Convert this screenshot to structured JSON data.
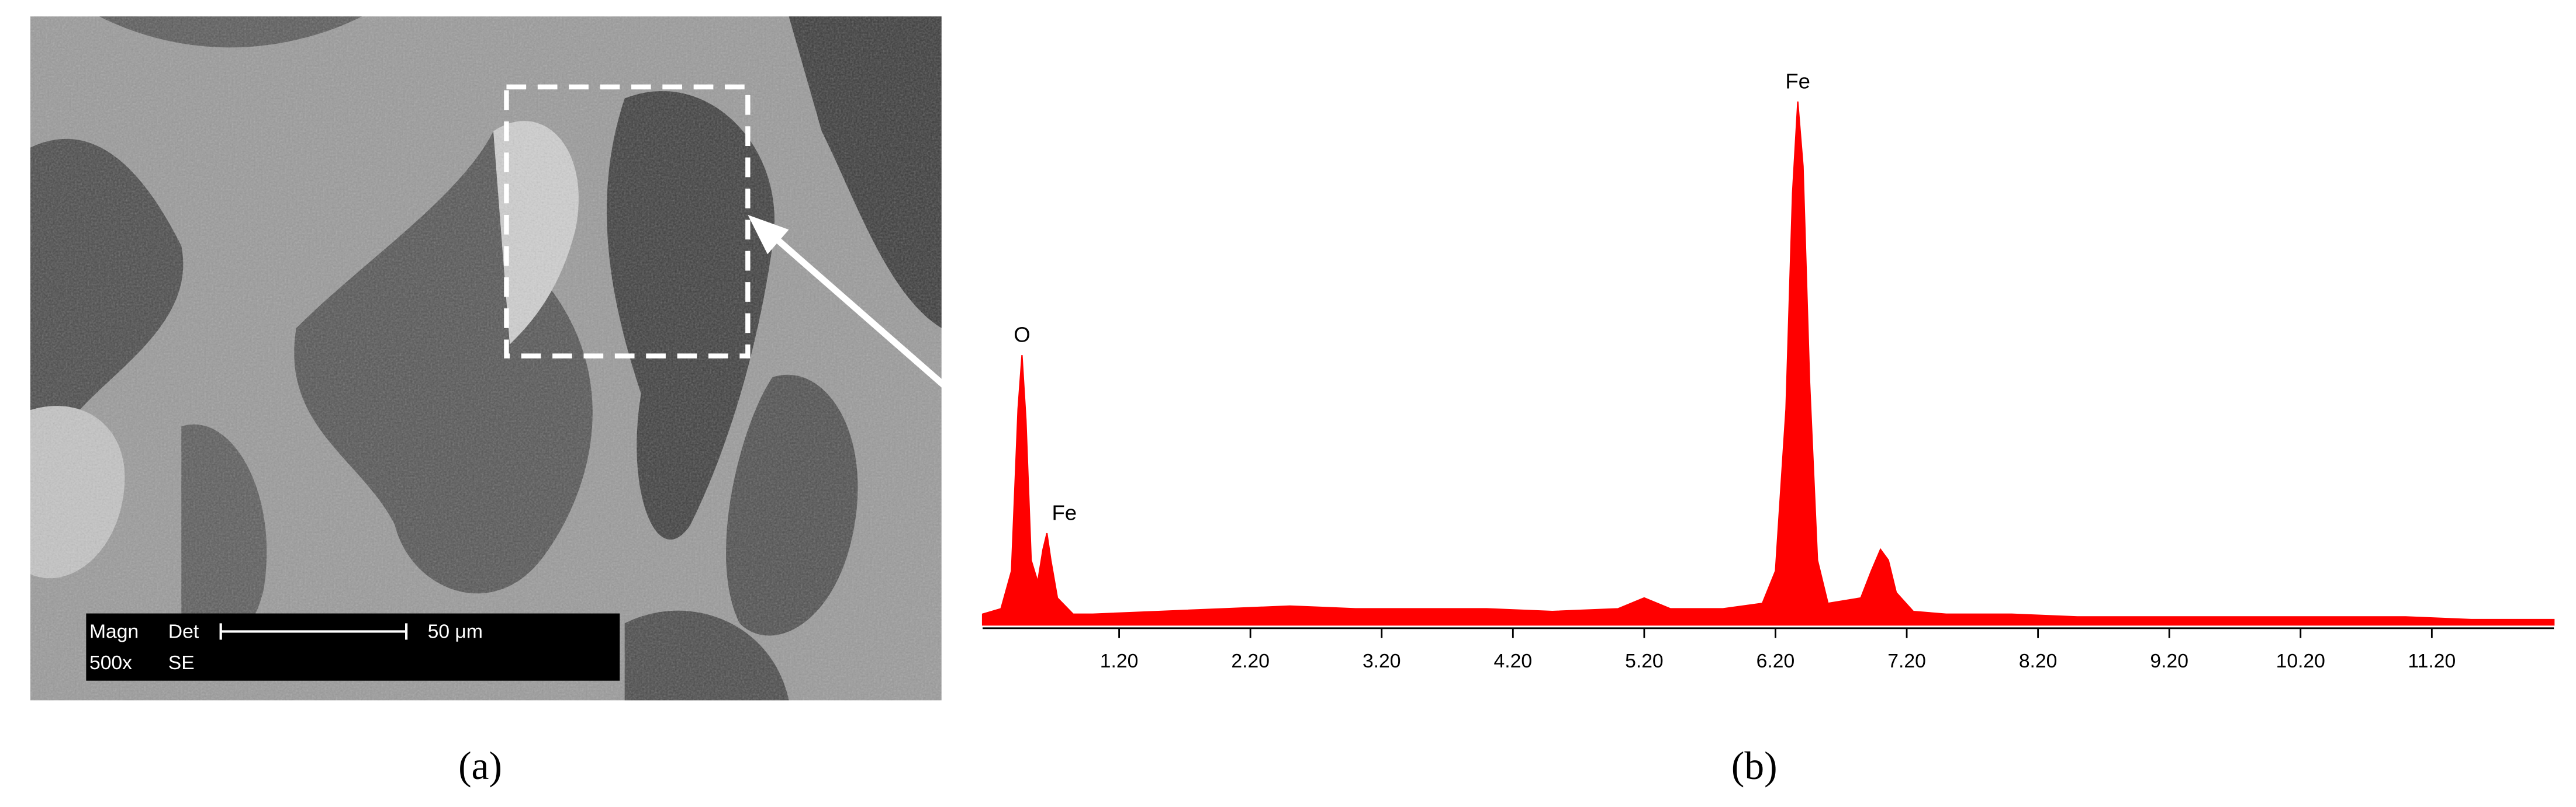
{
  "figure": {
    "panel_labels": [
      "(a)",
      "(b)"
    ],
    "sem_info": {
      "row1": [
        "Magn",
        "Det",
        "50 μm"
      ],
      "row2": [
        "500x",
        "SE"
      ]
    }
  },
  "chart_data": {
    "type": "area",
    "color": "#ff0000",
    "x": [
      0.16,
      0.3,
      0.38,
      0.43,
      0.46,
      0.49,
      0.53,
      0.58,
      0.62,
      0.65,
      0.68,
      0.73,
      0.85,
      1.0,
      1.5,
      2.0,
      2.5,
      3.0,
      3.5,
      4.0,
      4.5,
      5.0,
      5.2,
      5.4,
      5.8,
      6.1,
      6.2,
      6.28,
      6.33,
      6.37,
      6.41,
      6.46,
      6.52,
      6.6,
      6.85,
      6.93,
      7.0,
      7.06,
      7.12,
      7.25,
      7.5,
      8.0,
      8.5,
      9.0,
      9.5,
      10.0,
      10.5,
      11.0,
      11.5,
      12.13
    ],
    "values": [
      2,
      3,
      10,
      40,
      50,
      38,
      12,
      8,
      14,
      17,
      12,
      5,
      2,
      2,
      2.5,
      3,
      3.5,
      3,
      3,
      3,
      2.5,
      3,
      5,
      3,
      3,
      4,
      10,
      40,
      80,
      97,
      85,
      45,
      12,
      4,
      5,
      10,
      14,
      12,
      6,
      2.5,
      2,
      2,
      1.5,
      1.5,
      1.5,
      1.5,
      1.5,
      1.5,
      1,
      1
    ],
    "xlim": [
      0.16,
      12.13
    ],
    "ylim": [
      0,
      100
    ],
    "xticks": [
      {
        "value": 1.2,
        "label": "1.20"
      },
      {
        "value": 2.2,
        "label": "2.20"
      },
      {
        "value": 3.2,
        "label": "3.20"
      },
      {
        "value": 4.2,
        "label": "4.20"
      },
      {
        "value": 5.2,
        "label": "5.20"
      },
      {
        "value": 6.2,
        "label": "6.20"
      },
      {
        "value": 7.2,
        "label": "7.20"
      },
      {
        "value": 8.2,
        "label": "8.20"
      },
      {
        "value": 9.2,
        "label": "9.20"
      },
      {
        "value": 10.2,
        "label": "10.20"
      },
      {
        "value": 11.2,
        "label": "11.20"
      }
    ],
    "annotations": [
      {
        "text": "O",
        "x": 0.46,
        "y": 50
      },
      {
        "text": "Fe",
        "x": 0.65,
        "y": 17
      },
      {
        "text": "Fe",
        "x": 6.37,
        "y": 97
      }
    ]
  }
}
